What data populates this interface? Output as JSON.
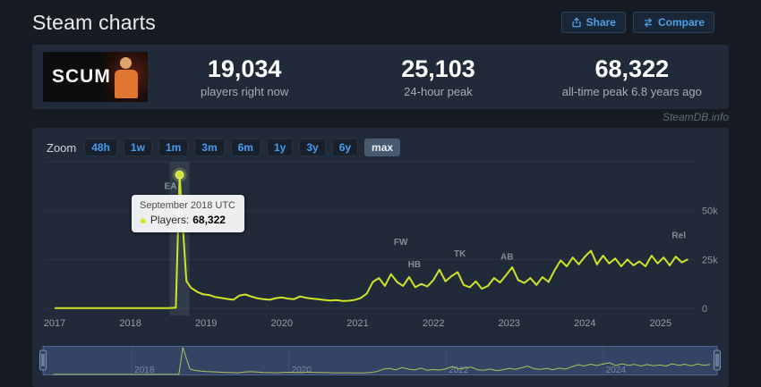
{
  "header": {
    "title": "Steam charts",
    "buttons": {
      "share": "Share",
      "compare": "Compare"
    }
  },
  "stats": {
    "game_name": "SCUM",
    "items": [
      {
        "value": "19,034",
        "label": "players right now"
      },
      {
        "value": "25,103",
        "label": "24-hour peak"
      },
      {
        "value": "68,322",
        "label": "all-time peak 6.8 years ago"
      }
    ]
  },
  "watermark": "SteamDB.info",
  "toolbar": {
    "zoom_label": "Zoom",
    "ranges": [
      "48h",
      "1w",
      "1m",
      "3m",
      "6m",
      "1y",
      "3y",
      "6y",
      "max"
    ],
    "selected": "max"
  },
  "tooltip": {
    "date": "September 2018 UTC",
    "series_label": "Players:",
    "value": "68,322"
  },
  "colors": {
    "accent_blue": "#4ba0e8",
    "line": "#d0e428",
    "navigator_mask": "rgba(100,125,195,0.32)"
  },
  "chart_data": {
    "type": "line",
    "series_name": "Players",
    "line_color": "#d0e428",
    "x_ticks": [
      2017,
      2018,
      2019,
      2020,
      2021,
      2022,
      2023,
      2024,
      2025
    ],
    "y_ticks": [
      {
        "v": 0,
        "label": "0"
      },
      {
        "v": 25000,
        "label": "25k"
      },
      {
        "v": 50000,
        "label": "50k"
      }
    ],
    "grid_values": [
      0,
      25000,
      50000,
      75000
    ],
    "xlim": [
      2016.87,
      2025.45
    ],
    "ylim": [
      0,
      75000
    ],
    "selected_point": {
      "x": 2018.65,
      "y": 68322
    },
    "annotations": [
      {
        "label": "EA",
        "x": 2018.53,
        "y": 61000
      },
      {
        "label": "FW",
        "x": 2021.57,
        "y": 32500
      },
      {
        "label": "HB",
        "x": 2021.75,
        "y": 21000
      },
      {
        "label": "TK",
        "x": 2022.35,
        "y": 26500
      },
      {
        "label": "AB",
        "x": 2022.97,
        "y": 25000
      },
      {
        "label": "Rel",
        "x": 2025.24,
        "y": 36000
      }
    ],
    "points": [
      [
        2017.0,
        150
      ],
      [
        2017.25,
        150
      ],
      [
        2017.5,
        150
      ],
      [
        2017.75,
        150
      ],
      [
        2018.0,
        150
      ],
      [
        2018.25,
        150
      ],
      [
        2018.5,
        150
      ],
      [
        2018.6,
        300
      ],
      [
        2018.65,
        68322
      ],
      [
        2018.7,
        38000
      ],
      [
        2018.74,
        14000
      ],
      [
        2018.8,
        10500
      ],
      [
        2018.88,
        8500
      ],
      [
        2018.96,
        7200
      ],
      [
        2019.04,
        6800
      ],
      [
        2019.12,
        5800
      ],
      [
        2019.2,
        5300
      ],
      [
        2019.28,
        4800
      ],
      [
        2019.36,
        4400
      ],
      [
        2019.44,
        6600
      ],
      [
        2019.52,
        7100
      ],
      [
        2019.6,
        6000
      ],
      [
        2019.68,
        5100
      ],
      [
        2019.76,
        4700
      ],
      [
        2019.84,
        4400
      ],
      [
        2019.92,
        5200
      ],
      [
        2020.0,
        5600
      ],
      [
        2020.08,
        5000
      ],
      [
        2020.16,
        4700
      ],
      [
        2020.24,
        6100
      ],
      [
        2020.32,
        5400
      ],
      [
        2020.4,
        5000
      ],
      [
        2020.48,
        4700
      ],
      [
        2020.56,
        4300
      ],
      [
        2020.64,
        4000
      ],
      [
        2020.72,
        4200
      ],
      [
        2020.8,
        3800
      ],
      [
        2020.88,
        3900
      ],
      [
        2020.96,
        4300
      ],
      [
        2021.04,
        5200
      ],
      [
        2021.12,
        7500
      ],
      [
        2021.2,
        13500
      ],
      [
        2021.28,
        15500
      ],
      [
        2021.36,
        11500
      ],
      [
        2021.44,
        17500
      ],
      [
        2021.52,
        13500
      ],
      [
        2021.6,
        11500
      ],
      [
        2021.68,
        16000
      ],
      [
        2021.76,
        10800
      ],
      [
        2021.84,
        12500
      ],
      [
        2021.92,
        11200
      ],
      [
        2022.0,
        14500
      ],
      [
        2022.08,
        19800
      ],
      [
        2022.16,
        13800
      ],
      [
        2022.24,
        16500
      ],
      [
        2022.32,
        18500
      ],
      [
        2022.4,
        12000
      ],
      [
        2022.48,
        10800
      ],
      [
        2022.56,
        13800
      ],
      [
        2022.64,
        10000
      ],
      [
        2022.72,
        11500
      ],
      [
        2022.8,
        15500
      ],
      [
        2022.88,
        13200
      ],
      [
        2022.96,
        17000
      ],
      [
        2023.04,
        21000
      ],
      [
        2023.12,
        14500
      ],
      [
        2023.2,
        13000
      ],
      [
        2023.28,
        15500
      ],
      [
        2023.36,
        12000
      ],
      [
        2023.44,
        16000
      ],
      [
        2023.52,
        13500
      ],
      [
        2023.6,
        19500
      ],
      [
        2023.68,
        24500
      ],
      [
        2023.76,
        21500
      ],
      [
        2023.84,
        26000
      ],
      [
        2023.92,
        22500
      ],
      [
        2024.0,
        26500
      ],
      [
        2024.08,
        29500
      ],
      [
        2024.16,
        22500
      ],
      [
        2024.24,
        27000
      ],
      [
        2024.32,
        23000
      ],
      [
        2024.4,
        25500
      ],
      [
        2024.48,
        21500
      ],
      [
        2024.56,
        25000
      ],
      [
        2024.64,
        22000
      ],
      [
        2024.72,
        24000
      ],
      [
        2024.8,
        21500
      ],
      [
        2024.88,
        27000
      ],
      [
        2024.96,
        23000
      ],
      [
        2025.04,
        26000
      ],
      [
        2025.12,
        22000
      ],
      [
        2025.2,
        26500
      ],
      [
        2025.28,
        23500
      ],
      [
        2025.36,
        25103
      ]
    ],
    "navigator": {
      "ylim": [
        0,
        70000
      ],
      "labels": [
        {
          "x": 2018,
          "label": "2018"
        },
        {
          "x": 2020,
          "label": "2020"
        },
        {
          "x": 2022,
          "label": "2022"
        },
        {
          "x": 2024,
          "label": "2024"
        }
      ]
    }
  }
}
